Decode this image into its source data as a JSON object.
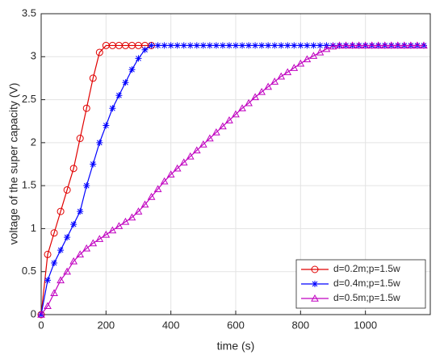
{
  "chart_data": {
    "type": "line",
    "xlabel": "time (s)",
    "ylabel": "voltage of the super capacity (V)",
    "x": [
      0,
      20,
      40,
      60,
      80,
      100,
      120,
      140,
      160,
      180,
      200,
      220,
      240,
      260,
      280,
      300,
      320,
      340,
      360,
      380,
      400,
      420,
      440,
      460,
      480,
      500,
      520,
      540,
      560,
      580,
      600,
      620,
      640,
      660,
      680,
      700,
      720,
      740,
      760,
      780,
      800,
      820,
      840,
      860,
      880,
      900,
      920,
      940,
      960,
      980,
      1000,
      1020,
      1040,
      1060,
      1080,
      1100,
      1120,
      1140,
      1160,
      1180
    ],
    "series": [
      {
        "name": "d=0.2m;p=1.5w",
        "color": "#e00000",
        "marker": "o",
        "values": [
          0,
          0.7,
          0.95,
          1.2,
          1.45,
          1.7,
          2.05,
          2.4,
          2.75,
          3.05,
          3.13,
          3.13,
          3.13,
          3.13,
          3.13,
          3.13,
          3.13,
          3.13,
          null,
          null,
          null,
          null,
          null,
          null,
          null,
          null,
          null,
          null,
          null,
          null,
          null,
          null,
          null,
          null,
          null,
          null,
          null,
          null,
          null,
          null,
          null,
          null,
          null,
          null,
          null,
          null,
          null,
          null,
          null,
          null,
          null,
          null,
          null,
          null,
          null,
          null,
          null,
          null,
          null,
          null
        ]
      },
      {
        "name": "d=0.4m;p=1.5w",
        "color": "#0000ff",
        "marker": "*",
        "values": [
          0,
          0.4,
          0.6,
          0.75,
          0.9,
          1.05,
          1.2,
          1.5,
          1.75,
          2.0,
          2.2,
          2.4,
          2.55,
          2.7,
          2.85,
          2.98,
          3.08,
          3.13,
          3.13,
          3.13,
          3.13,
          3.13,
          3.13,
          3.13,
          3.13,
          3.13,
          3.13,
          3.13,
          3.13,
          3.13,
          3.13,
          3.13,
          3.13,
          3.13,
          3.13,
          3.13,
          3.13,
          3.13,
          3.13,
          3.13,
          3.13,
          3.13,
          3.13,
          3.13,
          3.13,
          3.13,
          3.13,
          3.13,
          3.13,
          3.13,
          3.13,
          3.13,
          3.13,
          3.13,
          3.13,
          3.13,
          3.13,
          3.13,
          3.13,
          3.13
        ]
      },
      {
        "name": "d=0.5m;p=1.5w",
        "color": "#c000c0",
        "marker": "^",
        "values": [
          0,
          0.1,
          0.25,
          0.4,
          0.5,
          0.62,
          0.7,
          0.77,
          0.83,
          0.88,
          0.93,
          0.98,
          1.03,
          1.08,
          1.13,
          1.2,
          1.28,
          1.37,
          1.46,
          1.55,
          1.63,
          1.7,
          1.77,
          1.84,
          1.91,
          1.98,
          2.05,
          2.12,
          2.19,
          2.26,
          2.33,
          2.4,
          2.46,
          2.53,
          2.59,
          2.65,
          2.71,
          2.77,
          2.82,
          2.87,
          2.92,
          2.97,
          3.01,
          3.05,
          3.09,
          3.12,
          3.13,
          3.13,
          3.13,
          3.13,
          3.13,
          3.13,
          3.13,
          3.13,
          3.13,
          3.13,
          3.13,
          3.13,
          3.13,
          3.13
        ]
      }
    ],
    "xlim": [
      0,
      1200
    ],
    "xticks": [
      0,
      200,
      400,
      600,
      800,
      1000
    ],
    "ylim": [
      0,
      3.5
    ],
    "yticks": [
      0,
      0.5,
      1,
      1.5,
      2,
      2.5,
      3,
      3.5
    ],
    "grid": true,
    "legend": "lower right"
  }
}
